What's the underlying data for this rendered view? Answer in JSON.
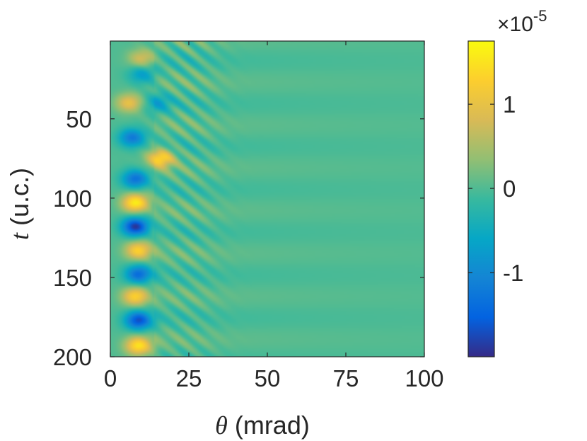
{
  "chart_data": {
    "type": "heatmap",
    "title": "",
    "xlabel": {
      "symbol": "θ",
      "text": " (mrad)"
    },
    "ylabel": {
      "symbol": "t",
      "text": "  (u.c.)"
    },
    "xlim": [
      0,
      100
    ],
    "ylim": [
      200,
      1
    ],
    "y_reversed": true,
    "xticks": [
      0,
      25,
      50,
      75,
      100
    ],
    "xtick_labels": [
      "0",
      "25",
      "50",
      "75",
      "100"
    ],
    "yticks": [
      50,
      100,
      150,
      200
    ],
    "ytick_labels": [
      "50",
      "100",
      "150",
      "200"
    ],
    "colormap": "parula",
    "colorbar": {
      "range": [
        -2e-05,
        1.75e-05
      ],
      "ticks": [
        -1e-05,
        0,
        1e-05
      ],
      "tick_labels": [
        "-1",
        "0",
        "1"
      ],
      "exponent_prefix": "×10",
      "exponent": "-5"
    },
    "background_value": 0,
    "pattern": {
      "description": "oscillating bands in t concentrated at small θ, decaying toward larger θ",
      "band_period_t": 27,
      "features": [
        {
          "theta": 10,
          "t": 12,
          "value": 8e-06
        },
        {
          "theta": 10,
          "t": 22,
          "value": -7e-06
        },
        {
          "theta": 6,
          "t": 40,
          "value": 1e-05
        },
        {
          "theta": 15,
          "t": 40,
          "value": -6e-06
        },
        {
          "theta": 7,
          "t": 62,
          "value": -1.2e-05
        },
        {
          "theta": 16,
          "t": 75,
          "value": 1.4e-05
        },
        {
          "theta": 8,
          "t": 88,
          "value": -1.3e-05
        },
        {
          "theta": 8,
          "t": 103,
          "value": 1.6e-05
        },
        {
          "theta": 8,
          "t": 118,
          "value": -1.9e-05
        },
        {
          "theta": 9,
          "t": 133,
          "value": 1.3e-05
        },
        {
          "theta": 9,
          "t": 148,
          "value": -1.4e-05
        },
        {
          "theta": 8,
          "t": 162,
          "value": 1.3e-05
        },
        {
          "theta": 9,
          "t": 177,
          "value": -1.7e-05
        },
        {
          "theta": 9,
          "t": 193,
          "value": 1.5e-05
        }
      ]
    }
  }
}
